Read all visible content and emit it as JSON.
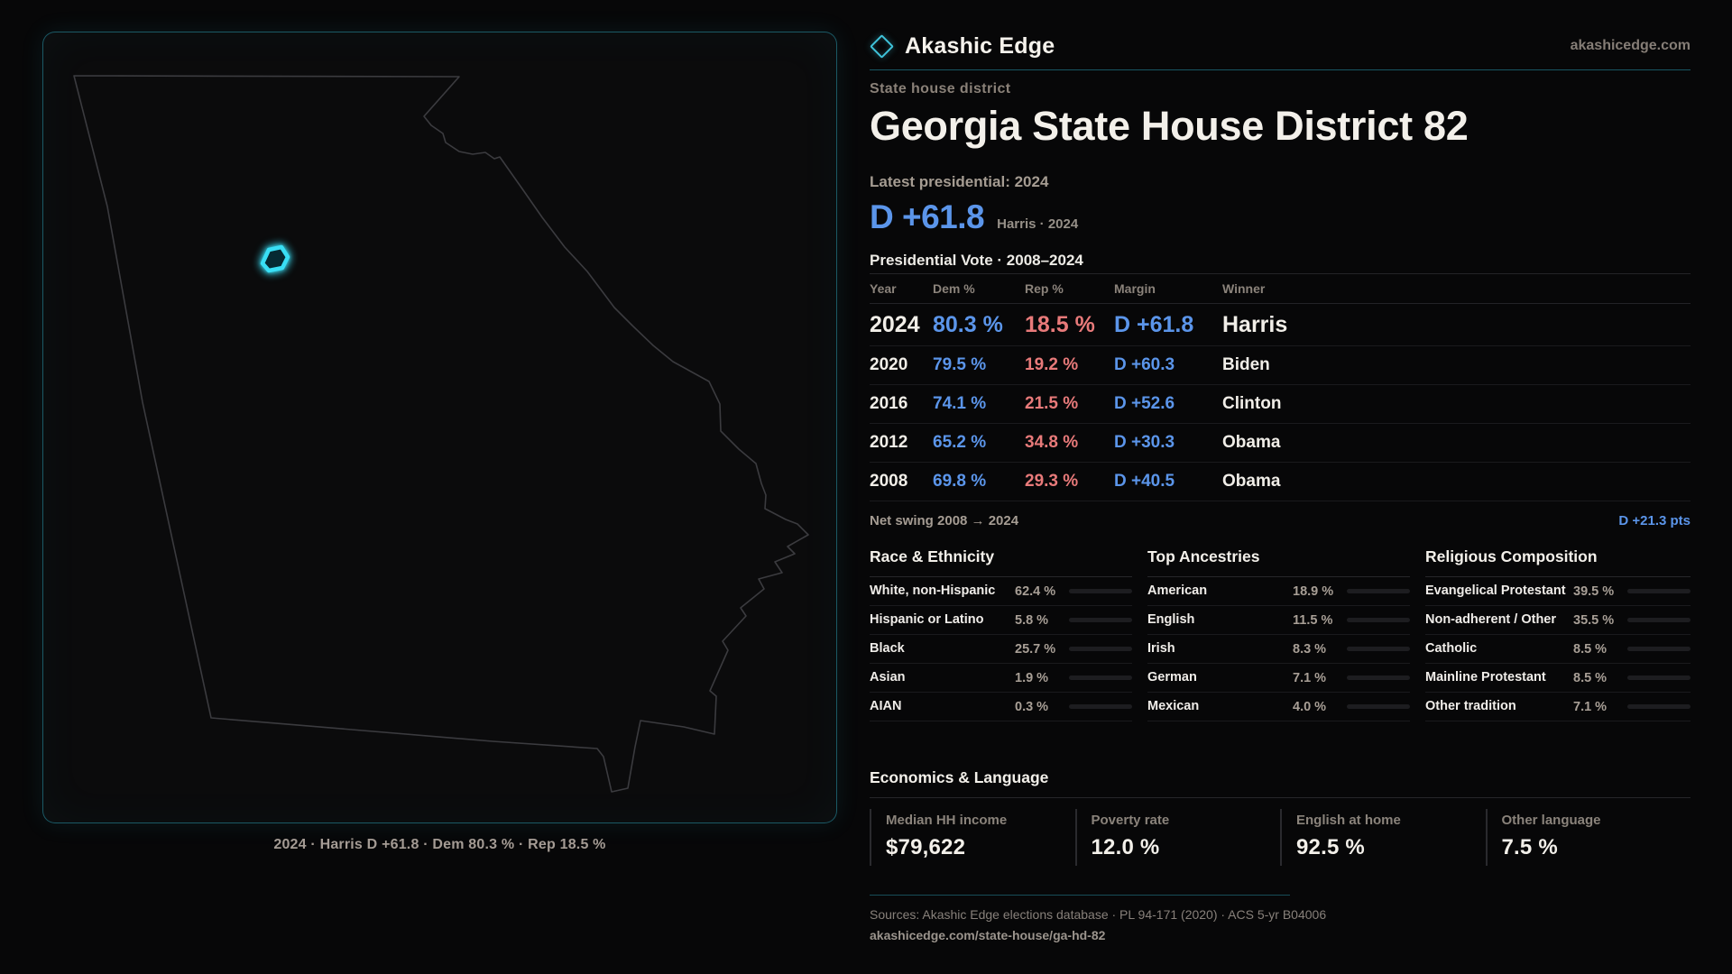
{
  "colors": {
    "dem": "#5b95ea",
    "rep": "#e87a7a",
    "accent": "#2fb7d3",
    "district": "#39dff5"
  },
  "brand": {
    "name": "Akashic Edge",
    "site": "akashicedge.com"
  },
  "page": {
    "kicker": "State house district",
    "title": "Georgia State House District 82",
    "latest_label": "Latest presidential: 2024",
    "headline_margin": "D +61.8",
    "headline_note": "Harris · 2024",
    "table_title": "Presidential Vote · 2008–2024"
  },
  "results": {
    "columns": [
      "Year",
      "Dem %",
      "Rep %",
      "Margin",
      "Winner"
    ],
    "rows": [
      {
        "year": "2024",
        "dem": "80.3 %",
        "rep": "18.5 %",
        "margin": "D +61.8",
        "winner": "Harris"
      },
      {
        "year": "2020",
        "dem": "79.5 %",
        "rep": "19.2 %",
        "margin": "D +60.3",
        "winner": "Biden"
      },
      {
        "year": "2016",
        "dem": "74.1 %",
        "rep": "21.5 %",
        "margin": "D +52.6",
        "winner": "Clinton"
      },
      {
        "year": "2012",
        "dem": "65.2 %",
        "rep": "34.8 %",
        "margin": "D +30.3",
        "winner": "Obama"
      },
      {
        "year": "2008",
        "dem": "69.8 %",
        "rep": "29.3 %",
        "margin": "D +40.5",
        "winner": "Obama"
      }
    ],
    "net_swing_label": "Net swing 2008 → 2024",
    "net_swing_value": "D +21.3 pts"
  },
  "sections": {
    "race": {
      "title": "Race & Ethnicity",
      "rows": [
        {
          "label": "White, non-Hispanic",
          "value": "62.4 %",
          "pct": 62.4,
          "color": "#9db3cc"
        },
        {
          "label": "Hispanic or Latino",
          "value": "5.8 %",
          "pct": 5.8,
          "color": "#e2a33d"
        },
        {
          "label": "Black",
          "value": "25.7 %",
          "pct": 25.7,
          "color": "#9486e8"
        },
        {
          "label": "Asian",
          "value": "1.9 %",
          "pct": 1.9,
          "color": "#37d8a4"
        },
        {
          "label": "AIAN",
          "value": "0.3 %",
          "pct": 0.3,
          "color": "#8a93a0"
        }
      ]
    },
    "ancestry": {
      "title": "Top Ancestries",
      "rows": [
        {
          "label": "American",
          "value": "18.9 %",
          "pct": 18.9,
          "color": "#9db3cc"
        },
        {
          "label": "English",
          "value": "11.5 %",
          "pct": 11.5,
          "color": "#9db3cc"
        },
        {
          "label": "Irish",
          "value": "8.3 %",
          "pct": 8.3,
          "color": "#9db3cc"
        },
        {
          "label": "German",
          "value": "7.1 %",
          "pct": 7.1,
          "color": "#9db3cc"
        },
        {
          "label": "Mexican",
          "value": "4.0 %",
          "pct": 4.0,
          "color": "#e2a33d"
        }
      ]
    },
    "religion": {
      "title": "Religious Composition",
      "rows": [
        {
          "label": "Evangelical Protestant",
          "value": "39.5 %",
          "pct": 39.5,
          "color": "#e06a6a"
        },
        {
          "label": "Non-adherent / Other",
          "value": "35.5 %",
          "pct": 35.5,
          "color": "#7b8496"
        },
        {
          "label": "Catholic",
          "value": "8.5 %",
          "pct": 8.5,
          "color": "#e7c33c"
        },
        {
          "label": "Mainline Protestant",
          "value": "8.5 %",
          "pct": 8.5,
          "color": "#5b95ea"
        },
        {
          "label": "Other tradition",
          "value": "7.1 %",
          "pct": 7.1,
          "color": "#8a93a0"
        }
      ]
    }
  },
  "economics": {
    "title": "Economics & Language",
    "stats": [
      {
        "label": "Median HH income",
        "value": "$79,622"
      },
      {
        "label": "Poverty rate",
        "value": "12.0 %"
      },
      {
        "label": "English at home",
        "value": "92.5 %"
      },
      {
        "label": "Other language",
        "value": "7.5 %"
      }
    ]
  },
  "map": {
    "caption": "2024 · Harris D +61.8 · Dem 80.3 % · Rep 18.5 %"
  },
  "footer": {
    "sources": "Sources: Akashic Edge elections database · PL 94-171 (2020) · ACS 5-yr B04006",
    "permalink": "akashicedge.com/state-house/ga-hd-82"
  }
}
